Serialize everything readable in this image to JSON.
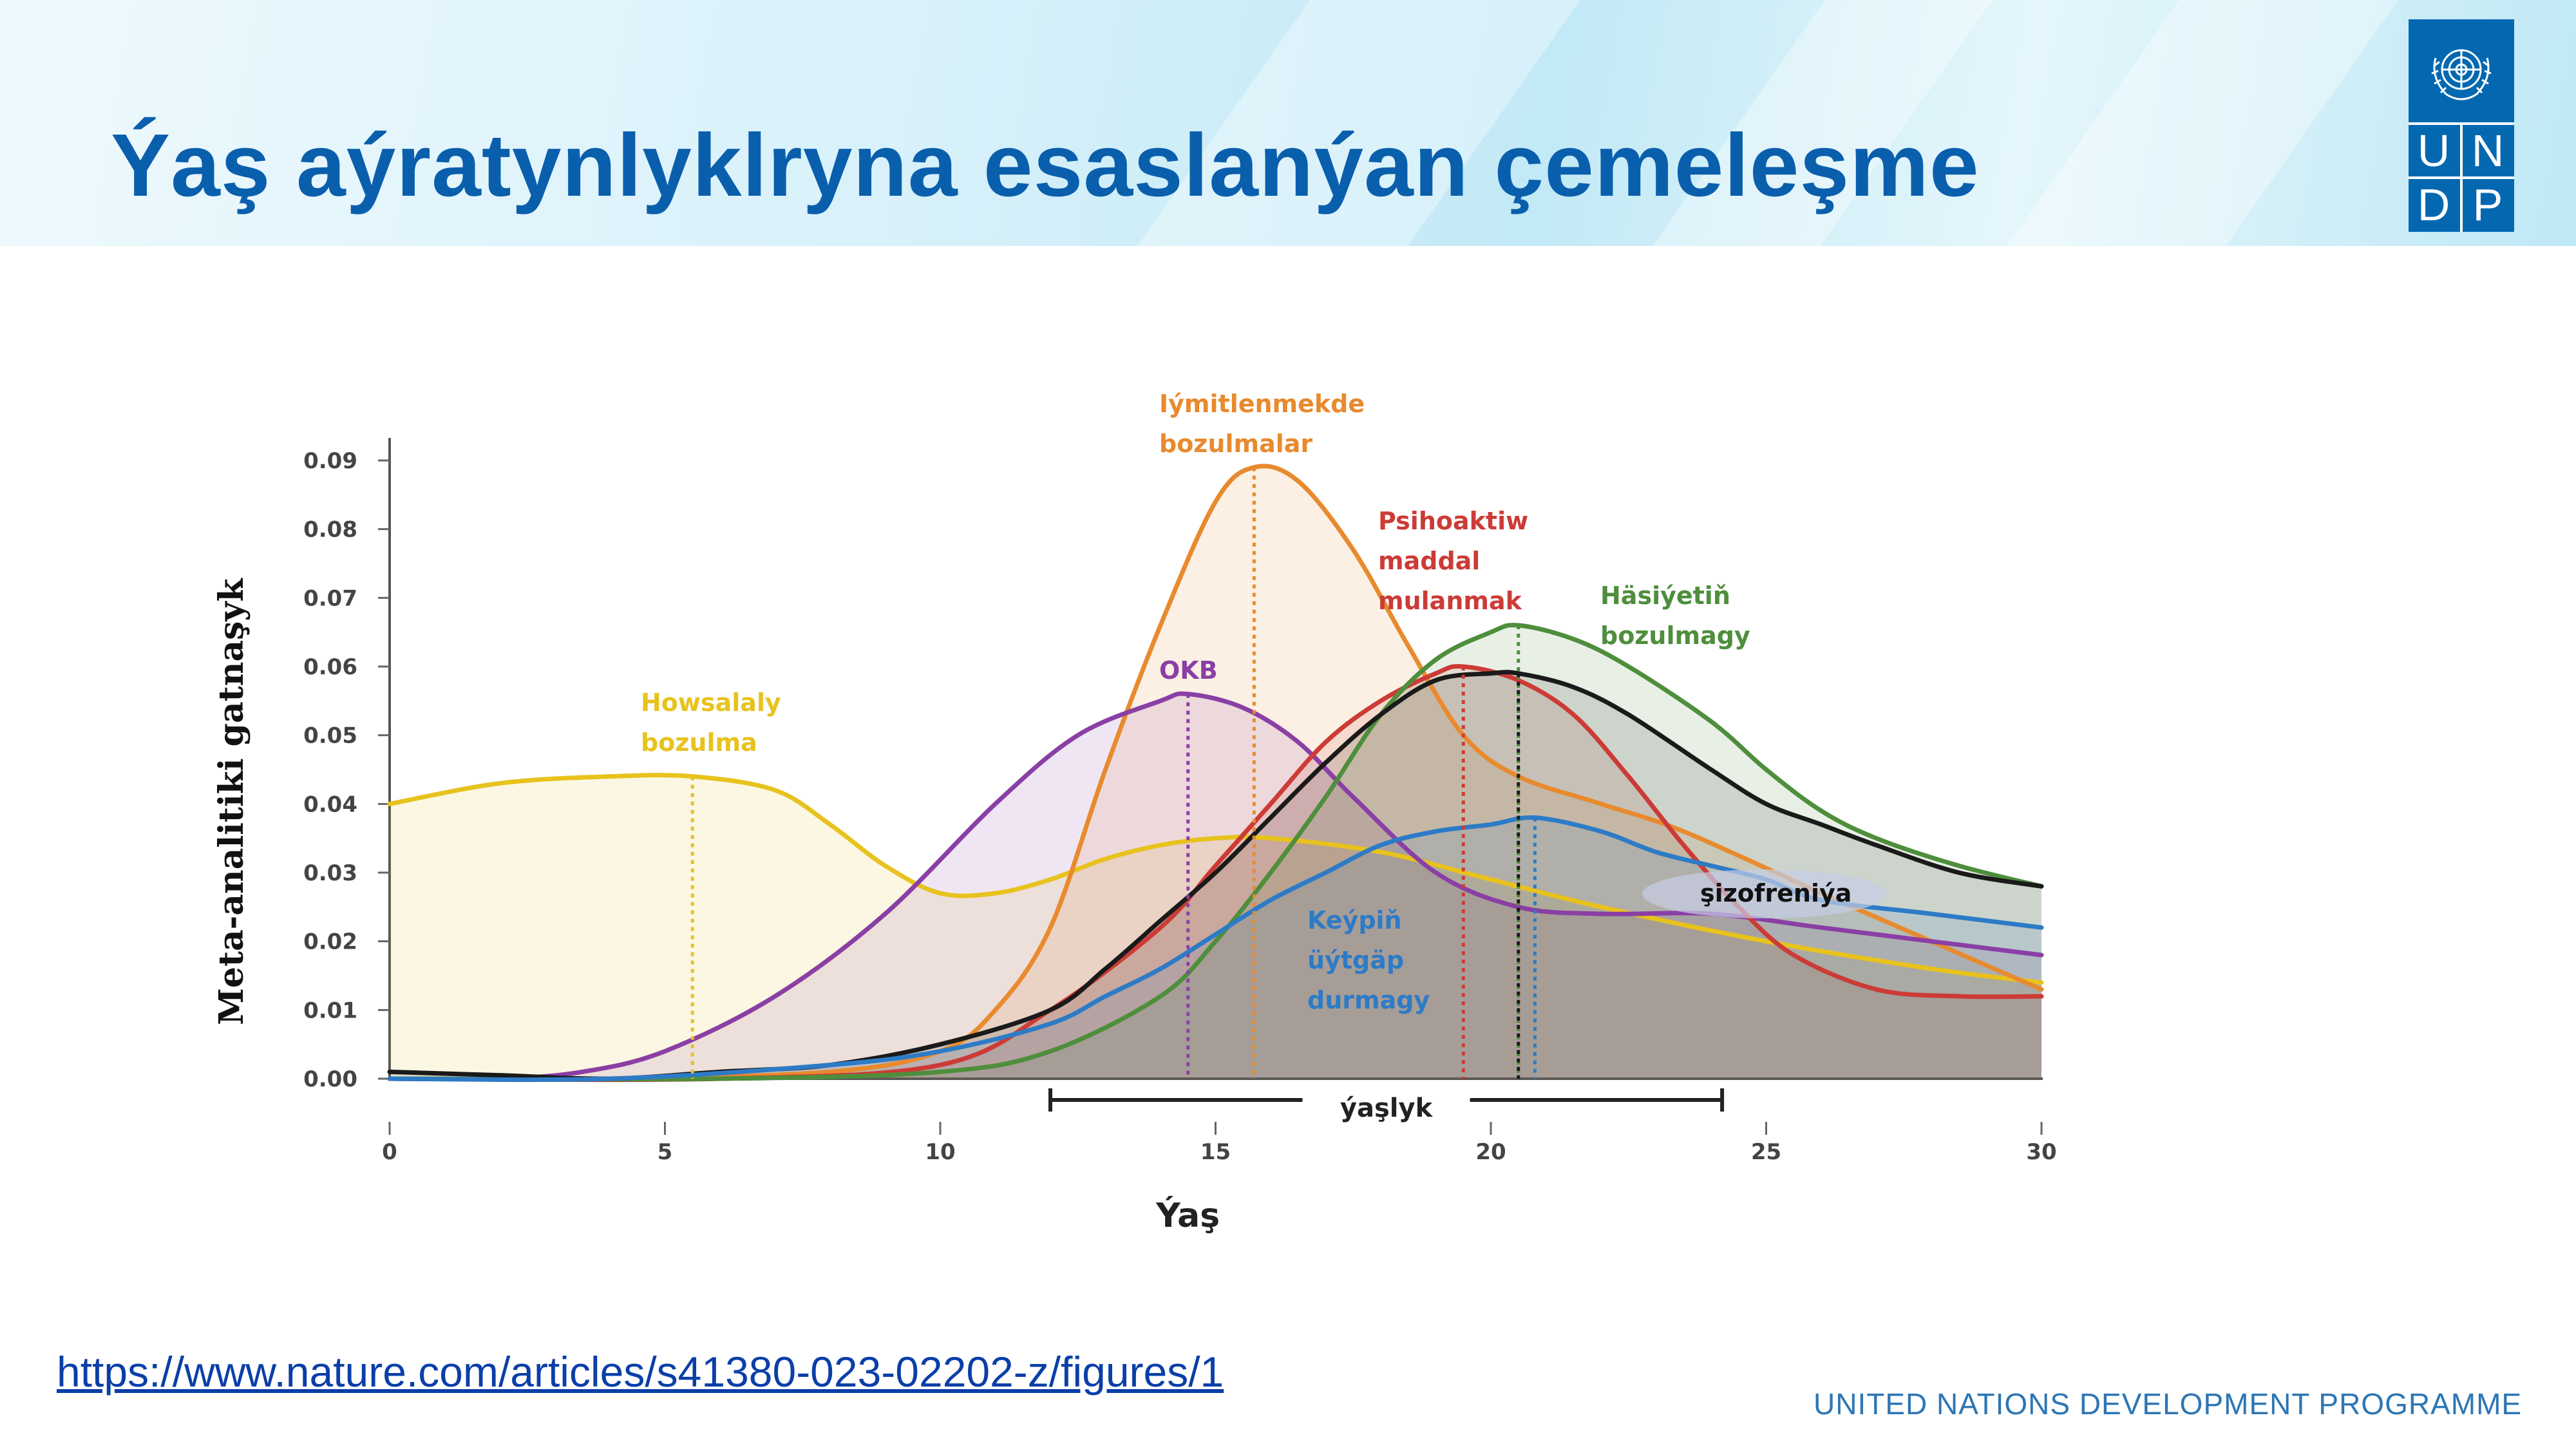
{
  "slide": {
    "title": "Ýaş aýratynlyklryna esaslanýan çemeleşme",
    "source_link": "https://www.nature.com/articles/s41380-023-02202-z/figures/1",
    "footer": "UNITED NATIONS DEVELOPMENT PROGRAMME",
    "logo": {
      "letters": [
        "U",
        "N",
        "D",
        "P"
      ],
      "color": "#0468b1"
    },
    "header_color": "#0a5fad"
  },
  "chart_data": {
    "type": "line",
    "xlabel": "Ýaş",
    "ylabel": "Meta-analitiki gatnaşyk",
    "xlim": [
      0,
      30
    ],
    "ylim": [
      0,
      0.09
    ],
    "xticks": [
      "0",
      "5",
      "10",
      "15",
      "20",
      "25",
      "30"
    ],
    "yticks": [
      "0.00",
      "0.01",
      "0.02",
      "0.03",
      "0.04",
      "0.05",
      "0.06",
      "0.07",
      "0.08",
      "0.09"
    ],
    "grid": false,
    "series": [
      {
        "name": "Howsalaly bozulma",
        "color": "#e8c21d",
        "peak_age": 5.5,
        "label_lines": [
          "Howsalaly",
          "bozulma"
        ],
        "points": [
          [
            0,
            0.04
          ],
          [
            2,
            0.043
          ],
          [
            4,
            0.044
          ],
          [
            5.5,
            0.044
          ],
          [
            7,
            0.042
          ],
          [
            8,
            0.037
          ],
          [
            9,
            0.031
          ],
          [
            10,
            0.027
          ],
          [
            11,
            0.027
          ],
          [
            12,
            0.029
          ],
          [
            13,
            0.032
          ],
          [
            14,
            0.034
          ],
          [
            15,
            0.035
          ],
          [
            16,
            0.035
          ],
          [
            18,
            0.033
          ],
          [
            20,
            0.029
          ],
          [
            22,
            0.025
          ],
          [
            25,
            0.02
          ],
          [
            28,
            0.016
          ],
          [
            30,
            0.014
          ]
        ]
      },
      {
        "name": "Iýmitlenmekde bozulmalar",
        "color": "#e88a2e",
        "peak_age": 15.7,
        "label_lines": [
          "Iýmitlenmekde",
          "bozulmalar"
        ],
        "points": [
          [
            0,
            0.0
          ],
          [
            4,
            0.0
          ],
          [
            8,
            0.001
          ],
          [
            10,
            0.004
          ],
          [
            11,
            0.01
          ],
          [
            12,
            0.022
          ],
          [
            13,
            0.045
          ],
          [
            14,
            0.066
          ],
          [
            15,
            0.084
          ],
          [
            15.7,
            0.089
          ],
          [
            16.5,
            0.087
          ],
          [
            17.5,
            0.077
          ],
          [
            18.5,
            0.063
          ],
          [
            19.5,
            0.05
          ],
          [
            20.5,
            0.044
          ],
          [
            22,
            0.04
          ],
          [
            23.5,
            0.036
          ],
          [
            26,
            0.027
          ],
          [
            28,
            0.02
          ],
          [
            30,
            0.013
          ]
        ]
      },
      {
        "name": "OKB",
        "color": "#8a3fa5",
        "peak_age": 14.5,
        "label_lines": [
          "OKB"
        ],
        "points": [
          [
            0,
            0.0
          ],
          [
            2,
            0.0
          ],
          [
            3.5,
            0.001
          ],
          [
            5,
            0.004
          ],
          [
            7,
            0.012
          ],
          [
            9,
            0.024
          ],
          [
            11,
            0.04
          ],
          [
            12.5,
            0.05
          ],
          [
            14,
            0.055
          ],
          [
            14.5,
            0.056
          ],
          [
            15.5,
            0.054
          ],
          [
            16.5,
            0.049
          ],
          [
            17.5,
            0.041
          ],
          [
            19,
            0.03
          ],
          [
            20.5,
            0.025
          ],
          [
            22,
            0.024
          ],
          [
            24,
            0.024
          ],
          [
            26,
            0.022
          ],
          [
            28,
            0.02
          ],
          [
            30,
            0.018
          ]
        ]
      },
      {
        "name": "Psihoaktiw maddal mulanmak",
        "color": "#cc3b36",
        "peak_age": 19.5,
        "label_lines": [
          "Psihoaktiw",
          "maddal",
          "mulanmak"
        ],
        "points": [
          [
            0,
            0.0
          ],
          [
            6,
            0.0
          ],
          [
            10,
            0.002
          ],
          [
            12,
            0.01
          ],
          [
            14,
            0.022
          ],
          [
            15,
            0.031
          ],
          [
            16,
            0.04
          ],
          [
            17,
            0.049
          ],
          [
            18,
            0.055
          ],
          [
            19,
            0.059
          ],
          [
            19.5,
            0.06
          ],
          [
            20.5,
            0.058
          ],
          [
            21.5,
            0.053
          ],
          [
            22.5,
            0.044
          ],
          [
            23.5,
            0.034
          ],
          [
            24.5,
            0.025
          ],
          [
            25.5,
            0.018
          ],
          [
            27,
            0.013
          ],
          [
            28.5,
            0.012
          ],
          [
            30,
            0.012
          ]
        ]
      },
      {
        "name": "Häsiýetiň bozulmagy",
        "color": "#4e8e3c",
        "peak_age": 20.5,
        "label_lines": [
          "Häsiýetiň",
          "bozulmagy"
        ],
        "points": [
          [
            0,
            0.0
          ],
          [
            6,
            0.0
          ],
          [
            10,
            0.001
          ],
          [
            12,
            0.004
          ],
          [
            14,
            0.012
          ],
          [
            15,
            0.02
          ],
          [
            16,
            0.03
          ],
          [
            17,
            0.041
          ],
          [
            18,
            0.053
          ],
          [
            19,
            0.061
          ],
          [
            20,
            0.065
          ],
          [
            20.5,
            0.066
          ],
          [
            21.5,
            0.064
          ],
          [
            22.5,
            0.06
          ],
          [
            24,
            0.052
          ],
          [
            25,
            0.045
          ],
          [
            26,
            0.039
          ],
          [
            27,
            0.035
          ],
          [
            28.5,
            0.031
          ],
          [
            30,
            0.028
          ]
        ]
      },
      {
        "name": "şizofreniýa",
        "color": "#1a1a1a",
        "peak_age": 20.5,
        "label_lines": [
          "şizofreniýa"
        ],
        "points": [
          [
            0,
            0.001
          ],
          [
            2,
            0.0005
          ],
          [
            4,
            0.0
          ],
          [
            6,
            0.001
          ],
          [
            8,
            0.002
          ],
          [
            10,
            0.005
          ],
          [
            12,
            0.01
          ],
          [
            13,
            0.016
          ],
          [
            14,
            0.023
          ],
          [
            15,
            0.03
          ],
          [
            16,
            0.038
          ],
          [
            17,
            0.046
          ],
          [
            18,
            0.053
          ],
          [
            19,
            0.058
          ],
          [
            20,
            0.059
          ],
          [
            20.5,
            0.059
          ],
          [
            21.5,
            0.057
          ],
          [
            22.5,
            0.053
          ],
          [
            24,
            0.045
          ],
          [
            25,
            0.04
          ],
          [
            26,
            0.037
          ],
          [
            27,
            0.034
          ],
          [
            28.5,
            0.03
          ],
          [
            30,
            0.028
          ]
        ]
      },
      {
        "name": "Keýpiň üýtgäp durmagy",
        "color": "#2d7bc6",
        "peak_age": 20.8,
        "label_lines": [
          "Keýpiň",
          "üýtgäp",
          "durmagy"
        ],
        "points": [
          [
            0,
            0.0
          ],
          [
            4,
            0.0
          ],
          [
            8,
            0.002
          ],
          [
            10,
            0.004
          ],
          [
            12,
            0.008
          ],
          [
            13,
            0.012
          ],
          [
            14,
            0.016
          ],
          [
            15,
            0.021
          ],
          [
            16,
            0.026
          ],
          [
            17,
            0.03
          ],
          [
            18,
            0.034
          ],
          [
            19,
            0.036
          ],
          [
            20,
            0.037
          ],
          [
            20.8,
            0.038
          ],
          [
            22,
            0.036
          ],
          [
            23,
            0.033
          ],
          [
            24,
            0.031
          ],
          [
            25,
            0.029
          ],
          [
            26,
            0.026
          ],
          [
            28,
            0.024
          ],
          [
            30,
            0.022
          ]
        ]
      }
    ],
    "annotations": {
      "youth_range_label": "ýaşlyk",
      "youth_range": [
        12,
        24.2
      ]
    }
  }
}
